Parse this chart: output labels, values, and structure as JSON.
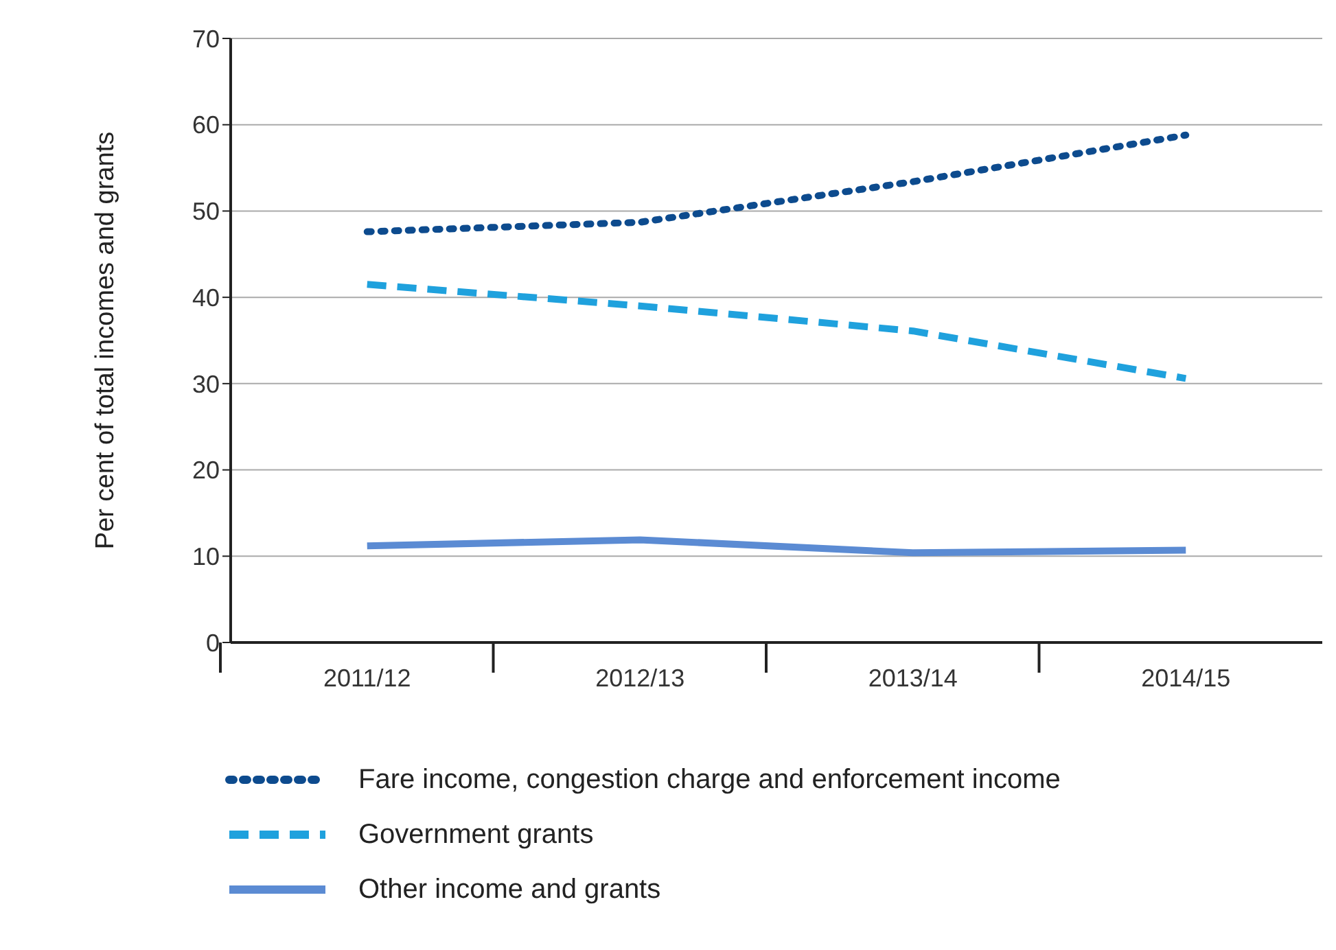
{
  "chart_data": {
    "type": "line",
    "ylabel": "Per cent of total incomes and grants",
    "categories": [
      "2011/12",
      "2012/13",
      "2013/14",
      "2014/15"
    ],
    "ylim": [
      0,
      70
    ],
    "yticks": [
      0,
      10,
      20,
      30,
      40,
      50,
      60,
      70
    ],
    "grid": "y",
    "legend": "bottom",
    "marker": "none",
    "series": [
      {
        "name": "Fare income, congestion charge and enforcement income",
        "color": "#0d4b8e",
        "line_style": "dotted",
        "values": [
          47.6,
          48.7,
          53.4,
          58.8
        ]
      },
      {
        "name": "Government grants",
        "color": "#1fa1dd",
        "line_style": "dashed",
        "values": [
          41.5,
          39,
          36.1,
          30.6
        ]
      },
      {
        "name": "Other income and grants",
        "color": "#5b8bd3",
        "line_style": "solid",
        "values": [
          11.2,
          11.9,
          10.4,
          10.7
        ]
      }
    ]
  }
}
